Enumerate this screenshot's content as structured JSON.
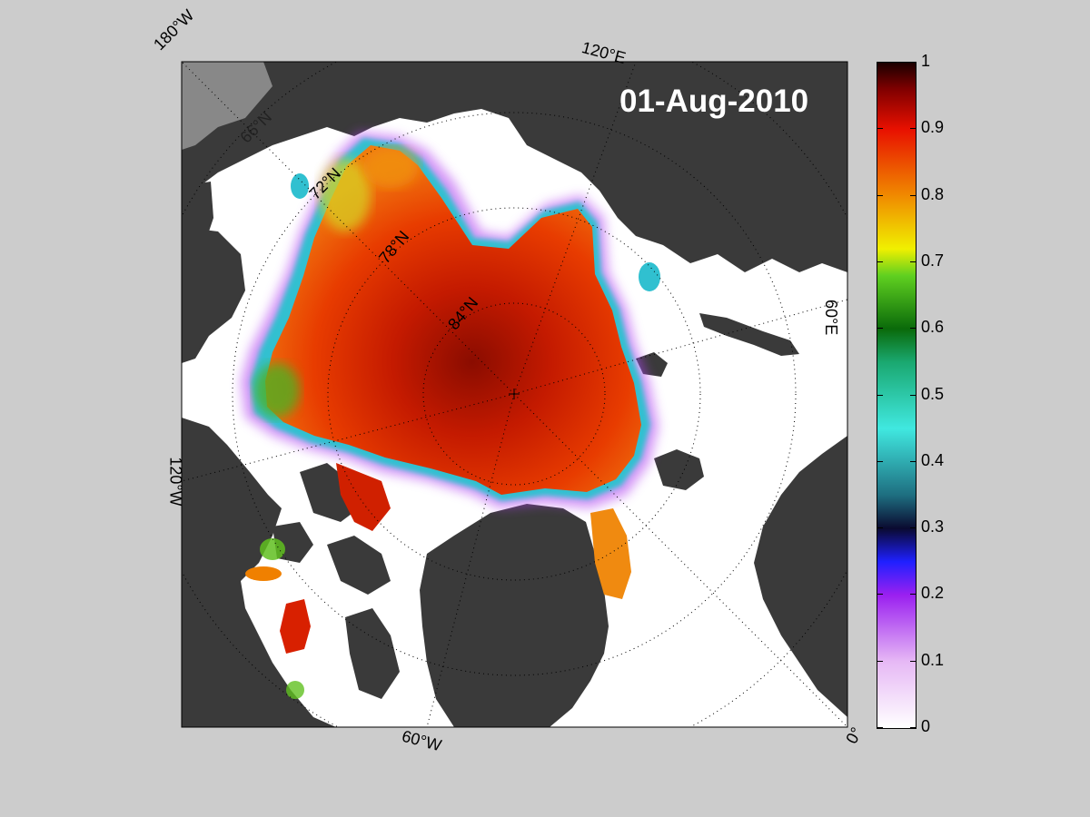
{
  "date_label": "01-Aug-2010",
  "longitude_labels": {
    "w180": "180°W",
    "e120": "120°E",
    "e60": "60°E",
    "w120": "120°W",
    "w60": "60°W",
    "zero": "0°"
  },
  "latitude_labels": {
    "n66": "66°N",
    "n72": "72°N",
    "n78": "78°N",
    "n84": "84°N"
  },
  "colorbar": {
    "ticks": [
      "0",
      "0.1",
      "0.2",
      "0.3",
      "0.4",
      "0.5",
      "0.6",
      "0.7",
      "0.8",
      "0.9",
      "1"
    ],
    "range": [
      0,
      1
    ]
  },
  "colors": {
    "background": "#cccccc",
    "land": "#3a3a3a",
    "open_water": "#ffffff",
    "ice_high": "#c81e00"
  }
}
